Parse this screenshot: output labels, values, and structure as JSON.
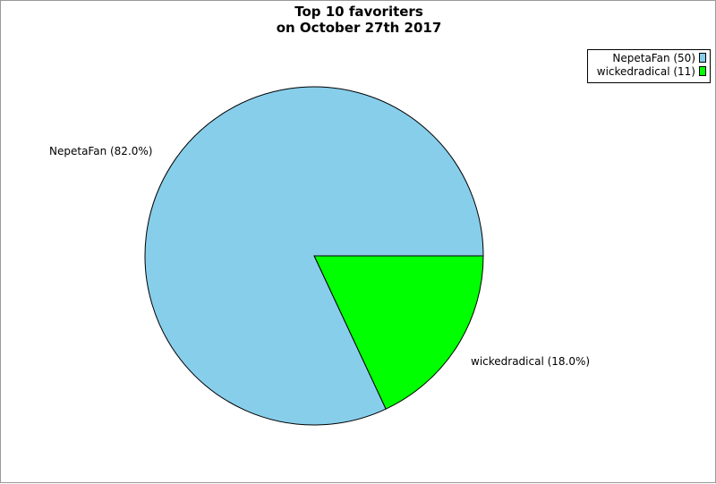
{
  "chart_data": {
    "type": "pie",
    "title": [
      "Top 10 favoriters",
      "on October 27th 2017"
    ],
    "slices": [
      {
        "label": "NepetaFan",
        "value": 50,
        "percent": 82.0,
        "color": "#87ceeb",
        "slice_label": "NepetaFan (82.0%)",
        "legend_label": "NepetaFan (50)"
      },
      {
        "label": "wickedradical",
        "value": 11,
        "percent": 18.0,
        "color": "#00ff00",
        "slice_label": "wickedradical (18.0%)",
        "legend_label": "wickedradical (11)"
      }
    ],
    "legend_position": "top-right"
  }
}
